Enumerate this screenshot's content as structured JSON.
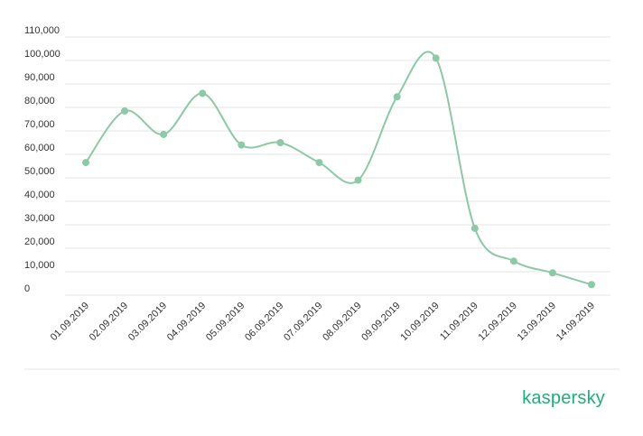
{
  "brand": {
    "logo_text": "kaspersky",
    "color": "#1db07a"
  },
  "chart_data": {
    "type": "line",
    "title": "",
    "xlabel": "",
    "ylabel": "",
    "categories": [
      "01.09.2019",
      "02.09.2019",
      "03.09.2019",
      "04.09.2019",
      "05.09.2019",
      "06.09.2019",
      "07.09.2019",
      "08.09.2019",
      "09.09.2019",
      "10.09.2019",
      "11.09.2019",
      "12.09.2019",
      "13.09.2019",
      "14.09.2019"
    ],
    "series": [
      {
        "values": [
          56500,
          78500,
          68500,
          86000,
          64000,
          65000,
          56500,
          49000,
          84500,
          101000,
          28500,
          14500,
          9500,
          4500
        ],
        "color": "#8cc9a6"
      }
    ],
    "ylim": [
      0,
      110000
    ],
    "yticks": [
      "0",
      "10,000",
      "20,000",
      "30,000",
      "40,000",
      "50,000",
      "60,000",
      "70,000",
      "80,000",
      "90,000",
      "100,000",
      "110,000"
    ],
    "grid": true,
    "smooth": true
  }
}
